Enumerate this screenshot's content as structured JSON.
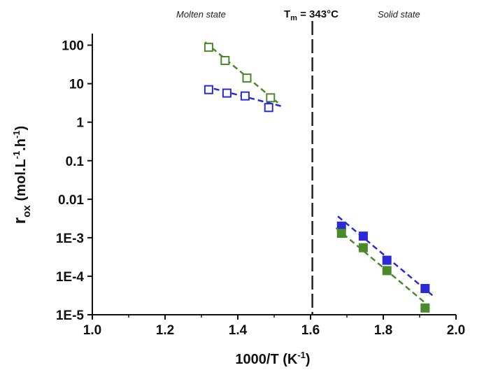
{
  "chart_data": {
    "type": "scatter",
    "xlabel": "1000/T (K",
    "xlabel_sup": "-1",
    "xlabel_close": ")",
    "ylabel_main": "r",
    "ylabel_sub": "ox",
    "ylabel_units": "(mol.L",
    "ylabel_units_sup1": "-1",
    "ylabel_units_mid": ".h",
    "ylabel_units_sup2": "-1",
    "ylabel_units_close": ")",
    "xlim": [
      1.0,
      2.0
    ],
    "ylim": [
      1e-05,
      200
    ],
    "yscale": "log",
    "xticks": [
      {
        "value": 1.0,
        "label": "1.0"
      },
      {
        "value": 1.2,
        "label": "1.2"
      },
      {
        "value": 1.4,
        "label": "1.4"
      },
      {
        "value": 1.6,
        "label": "1.6"
      },
      {
        "value": 1.8,
        "label": "1.8"
      },
      {
        "value": 2.0,
        "label": "2.0"
      }
    ],
    "yticks": [
      {
        "value": 100,
        "label": "100"
      },
      {
        "value": 10,
        "label": "10"
      },
      {
        "value": 1,
        "label": "1"
      },
      {
        "value": 0.1,
        "label": "0.1"
      },
      {
        "value": 0.01,
        "label": "0.01"
      },
      {
        "value": 0.001,
        "label": "1E-3"
      },
      {
        "value": 0.0001,
        "label": "1E-4"
      },
      {
        "value": 1e-05,
        "label": "1E-5"
      }
    ],
    "annotations": {
      "molten": "Molten state",
      "tm_T": "T",
      "tm_sub": "m",
      "tm_rest": " = 343°C",
      "solid": "Solid state"
    },
    "vline_x": 1.605,
    "series": [
      {
        "marker": "open-square",
        "color": "#4a8a2a",
        "points": [
          [
            1.32,
            88
          ],
          [
            1.365,
            40
          ],
          [
            1.425,
            14
          ],
          [
            1.49,
            4.3
          ]
        ],
        "fit": [
          [
            1.31,
            120
          ],
          [
            1.51,
            3.2
          ]
        ]
      },
      {
        "marker": "open-square",
        "color": "#2a2ad6",
        "points": [
          [
            1.32,
            7
          ],
          [
            1.37,
            5.7
          ],
          [
            1.42,
            4.8
          ],
          [
            1.485,
            2.4
          ]
        ],
        "fit": [
          [
            1.31,
            8.5
          ],
          [
            1.52,
            2.6
          ]
        ]
      },
      {
        "marker": "filled-square",
        "color": "#2a2ad6",
        "points": [
          [
            1.685,
            0.002
          ],
          [
            1.745,
            0.0011
          ],
          [
            1.81,
            0.00026
          ],
          [
            1.915,
            4.8e-05
          ]
        ],
        "fit": [
          [
            1.675,
            0.0036
          ],
          [
            1.935,
            3.2e-05
          ]
        ]
      },
      {
        "marker": "filled-square",
        "color": "#4a8a2a",
        "points": [
          [
            1.685,
            0.0013
          ],
          [
            1.745,
            0.00055
          ],
          [
            1.81,
            0.00014
          ],
          [
            1.915,
            1.5e-05
          ]
        ],
        "fit": [
          [
            1.67,
            0.0018
          ],
          [
            1.925,
            1.7e-05
          ]
        ]
      }
    ]
  }
}
